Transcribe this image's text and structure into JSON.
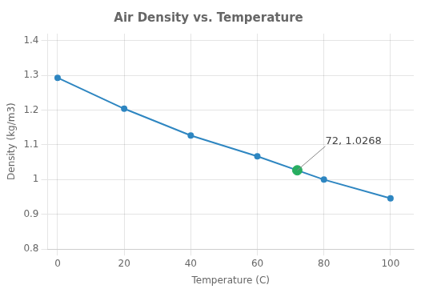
{
  "chart_data": {
    "type": "line",
    "title": "Air Density vs. Temperature",
    "x_label": "Temperature (C)",
    "y_label": "Density (kg/m3)",
    "x": [
      0,
      20,
      40,
      60,
      80,
      100
    ],
    "values": [
      1.293,
      1.204,
      1.127,
      1.067,
      1.0,
      0.946
    ],
    "color": "#2E86C1",
    "marker": "circle",
    "annotations": [
      {
        "text": "72, 1.0268",
        "x": 72,
        "y": 1.0268,
        "color": "#27AE60"
      }
    ],
    "xlim": [
      -3,
      107
    ],
    "ylim": [
      0.8,
      1.42
    ],
    "xticks": [
      0,
      20,
      40,
      60,
      80,
      100
    ],
    "yticks": [
      0.8,
      0.9,
      1,
      1.1,
      1.2,
      1.3,
      1.4
    ],
    "grid": true
  }
}
